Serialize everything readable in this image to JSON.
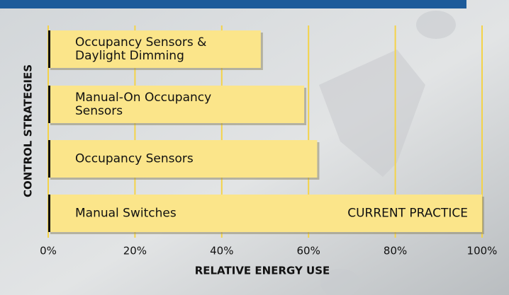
{
  "chart_data": {
    "type": "barh",
    "categories": [
      "Occupancy Sensors & Daylight Dimming",
      "Manual-On Occupancy Sensors",
      "Occupancy Sensors",
      "Manual Switches"
    ],
    "values": [
      49,
      59,
      62,
      100
    ],
    "color": "#fbe58a",
    "annotation": "CURRENT PRACTICE",
    "xlabel": "RELATIVE ENERGY USE",
    "ylabel": "CONTROL STRATEGIES",
    "xlim": [
      0,
      100
    ],
    "xticks": [
      {
        "value": 0,
        "label": "0%"
      },
      {
        "value": 20,
        "label": "20%"
      },
      {
        "value": 40,
        "label": "40%"
      },
      {
        "value": 60,
        "label": "60%"
      },
      {
        "value": 80,
        "label": "80%"
      },
      {
        "value": 100,
        "label": "100%"
      }
    ],
    "grid": true,
    "grid_color": "#f4d348"
  }
}
